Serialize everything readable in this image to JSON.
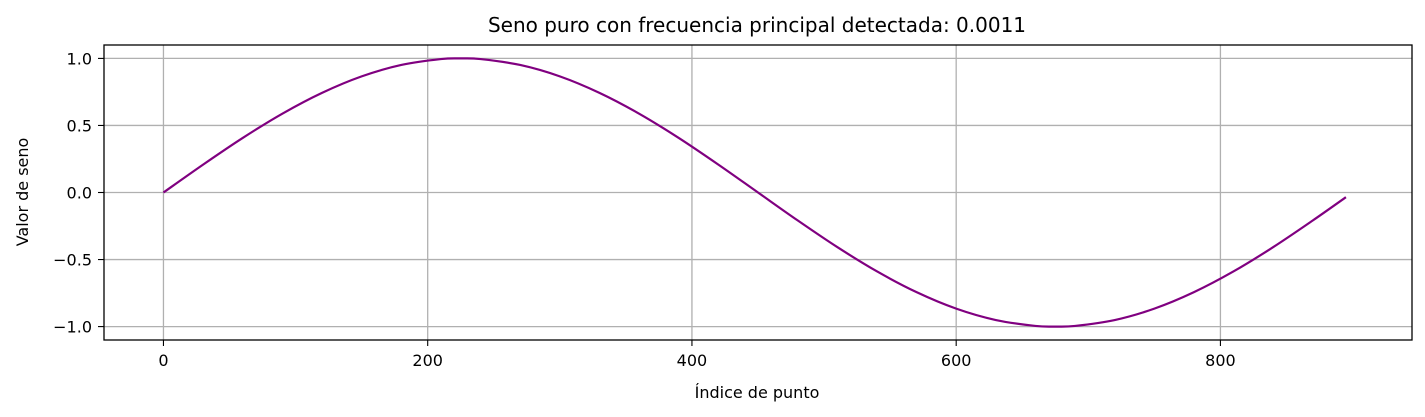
{
  "chart_data": {
    "type": "line",
    "title": "Seno puro con frecuencia principal detectada: 0.0011",
    "xlabel": "Índice de punto",
    "ylabel": "Valor de seno",
    "xlim": [
      -45,
      945
    ],
    "ylim": [
      -1.1,
      1.1
    ],
    "x_ticks": [
      0,
      200,
      400,
      600,
      800
    ],
    "x_tick_labels": [
      "0",
      "200",
      "400",
      "600",
      "800"
    ],
    "y_ticks": [
      1.0,
      0.5,
      0.0,
      -0.5,
      -1.0
    ],
    "y_tick_labels": [
      "1.0",
      "0.5",
      "0.0",
      "−0.5",
      "−1.0"
    ],
    "grid": true,
    "series": [
      {
        "color": "#800080",
        "x": [
          0,
          30,
          60,
          90,
          120,
          150,
          180,
          210,
          225,
          240,
          270,
          300,
          330,
          360,
          390,
          420,
          450,
          480,
          510,
          540,
          570,
          600,
          630,
          660,
          675,
          690,
          720,
          750,
          780,
          810,
          840,
          870,
          895
        ],
        "y": [
          0.0,
          0.208,
          0.407,
          0.588,
          0.743,
          0.866,
          0.951,
          0.995,
          1.0,
          0.995,
          0.951,
          0.866,
          0.743,
          0.588,
          0.407,
          0.208,
          0.0,
          -0.208,
          -0.407,
          -0.588,
          -0.743,
          -0.866,
          -0.951,
          -0.995,
          -1.0,
          -0.995,
          -0.951,
          -0.866,
          -0.743,
          -0.588,
          -0.407,
          -0.208,
          -0.035
        ]
      }
    ]
  }
}
